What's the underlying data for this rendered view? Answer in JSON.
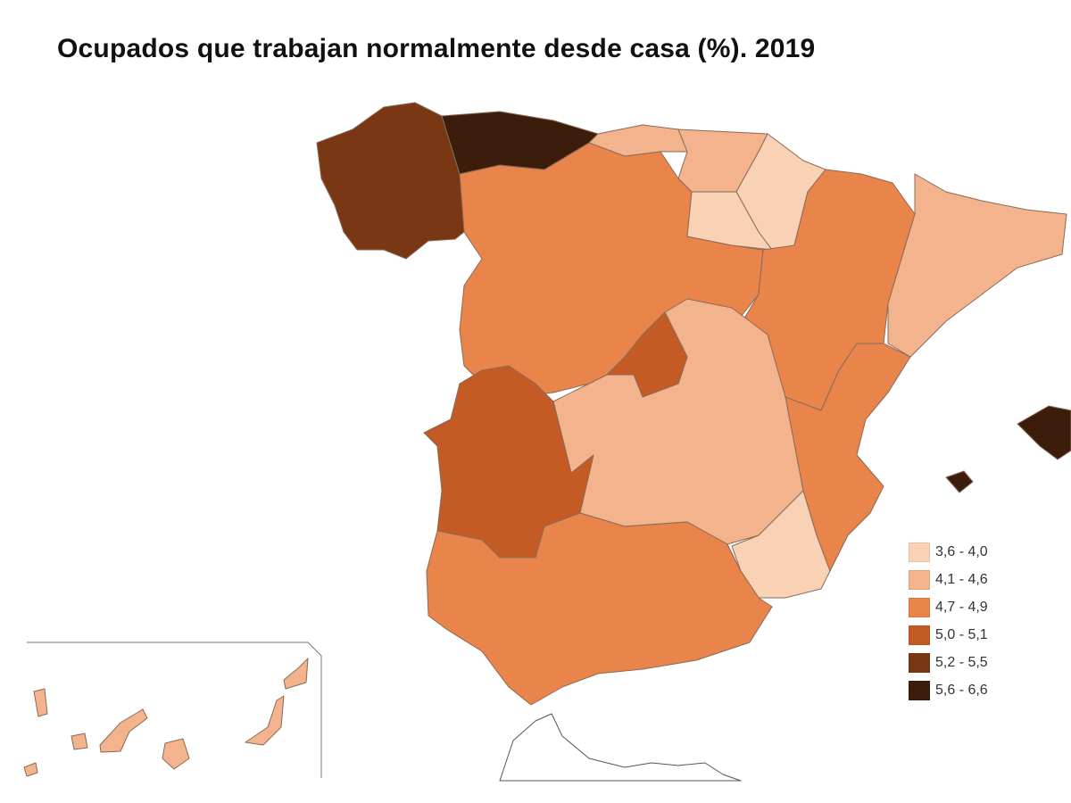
{
  "title": "Ocupados que trabajan normalmente desde casa (%). 2019",
  "legend": [
    {
      "label": "3,6 - 4,0",
      "color": "#f9d1b4"
    },
    {
      "label": "4,1 - 4,6",
      "color": "#f2b38d"
    },
    {
      "label": "4,7 - 4,9",
      "color": "#e9844a"
    },
    {
      "label": "5,0 - 5,1",
      "color": "#c45a24"
    },
    {
      "label": "5,2 - 5,5",
      "color": "#7a3713"
    },
    {
      "label": "5,6 - 6,6",
      "color": "#3c1c0a"
    }
  ],
  "regions": {
    "galicia": 4,
    "asturias": 5,
    "cantabria": 1,
    "pais-vasco": 1,
    "navarra": 0,
    "la-rioja": 0,
    "castilla-leon": 2,
    "aragon": 2,
    "cataluna": 1,
    "madrid": 3,
    "castilla-la-mancha": 1,
    "extremadura": 3,
    "valencia": 2,
    "murcia": 0,
    "andalucia": 2,
    "baleares": 5,
    "canarias": 1
  }
}
